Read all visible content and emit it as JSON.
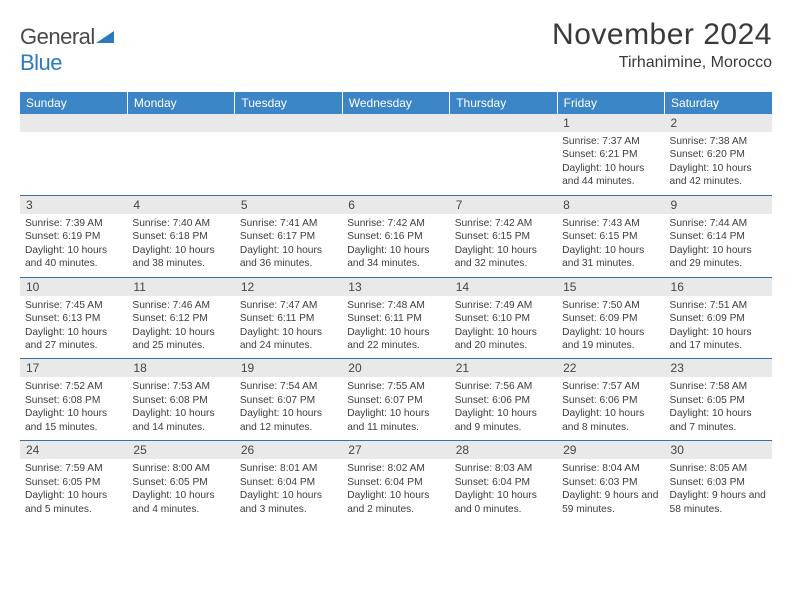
{
  "brand": {
    "word1": "General",
    "word2": "Blue",
    "word1_color": "#494949",
    "word2_color": "#2d79bd",
    "icon_color": "#2d79bd"
  },
  "header": {
    "title": "November 2024",
    "location": "Tirhanimine, Morocco",
    "title_fontsize": 30,
    "location_fontsize": 16,
    "title_color": "#3a3a3a"
  },
  "columns": [
    "Sunday",
    "Monday",
    "Tuesday",
    "Wednesday",
    "Thursday",
    "Friday",
    "Saturday"
  ],
  "style": {
    "header_bg": "#3c85c6",
    "header_text": "#ffffff",
    "daynum_bg": "#e9e9e9",
    "row_divider": "#3972a8",
    "body_text": "#3d3d3d",
    "cell_fontsize": 10.2,
    "daynum_fontsize": 12
  },
  "weeks": [
    [
      null,
      null,
      null,
      null,
      null,
      {
        "n": "1",
        "sunrise": "7:37 AM",
        "sunset": "6:21 PM",
        "daylight": "10 hours and 44 minutes."
      },
      {
        "n": "2",
        "sunrise": "7:38 AM",
        "sunset": "6:20 PM",
        "daylight": "10 hours and 42 minutes."
      }
    ],
    [
      {
        "n": "3",
        "sunrise": "7:39 AM",
        "sunset": "6:19 PM",
        "daylight": "10 hours and 40 minutes."
      },
      {
        "n": "4",
        "sunrise": "7:40 AM",
        "sunset": "6:18 PM",
        "daylight": "10 hours and 38 minutes."
      },
      {
        "n": "5",
        "sunrise": "7:41 AM",
        "sunset": "6:17 PM",
        "daylight": "10 hours and 36 minutes."
      },
      {
        "n": "6",
        "sunrise": "7:42 AM",
        "sunset": "6:16 PM",
        "daylight": "10 hours and 34 minutes."
      },
      {
        "n": "7",
        "sunrise": "7:42 AM",
        "sunset": "6:15 PM",
        "daylight": "10 hours and 32 minutes."
      },
      {
        "n": "8",
        "sunrise": "7:43 AM",
        "sunset": "6:15 PM",
        "daylight": "10 hours and 31 minutes."
      },
      {
        "n": "9",
        "sunrise": "7:44 AM",
        "sunset": "6:14 PM",
        "daylight": "10 hours and 29 minutes."
      }
    ],
    [
      {
        "n": "10",
        "sunrise": "7:45 AM",
        "sunset": "6:13 PM",
        "daylight": "10 hours and 27 minutes."
      },
      {
        "n": "11",
        "sunrise": "7:46 AM",
        "sunset": "6:12 PM",
        "daylight": "10 hours and 25 minutes."
      },
      {
        "n": "12",
        "sunrise": "7:47 AM",
        "sunset": "6:11 PM",
        "daylight": "10 hours and 24 minutes."
      },
      {
        "n": "13",
        "sunrise": "7:48 AM",
        "sunset": "6:11 PM",
        "daylight": "10 hours and 22 minutes."
      },
      {
        "n": "14",
        "sunrise": "7:49 AM",
        "sunset": "6:10 PM",
        "daylight": "10 hours and 20 minutes."
      },
      {
        "n": "15",
        "sunrise": "7:50 AM",
        "sunset": "6:09 PM",
        "daylight": "10 hours and 19 minutes."
      },
      {
        "n": "16",
        "sunrise": "7:51 AM",
        "sunset": "6:09 PM",
        "daylight": "10 hours and 17 minutes."
      }
    ],
    [
      {
        "n": "17",
        "sunrise": "7:52 AM",
        "sunset": "6:08 PM",
        "daylight": "10 hours and 15 minutes."
      },
      {
        "n": "18",
        "sunrise": "7:53 AM",
        "sunset": "6:08 PM",
        "daylight": "10 hours and 14 minutes."
      },
      {
        "n": "19",
        "sunrise": "7:54 AM",
        "sunset": "6:07 PM",
        "daylight": "10 hours and 12 minutes."
      },
      {
        "n": "20",
        "sunrise": "7:55 AM",
        "sunset": "6:07 PM",
        "daylight": "10 hours and 11 minutes."
      },
      {
        "n": "21",
        "sunrise": "7:56 AM",
        "sunset": "6:06 PM",
        "daylight": "10 hours and 9 minutes."
      },
      {
        "n": "22",
        "sunrise": "7:57 AM",
        "sunset": "6:06 PM",
        "daylight": "10 hours and 8 minutes."
      },
      {
        "n": "23",
        "sunrise": "7:58 AM",
        "sunset": "6:05 PM",
        "daylight": "10 hours and 7 minutes."
      }
    ],
    [
      {
        "n": "24",
        "sunrise": "7:59 AM",
        "sunset": "6:05 PM",
        "daylight": "10 hours and 5 minutes."
      },
      {
        "n": "25",
        "sunrise": "8:00 AM",
        "sunset": "6:05 PM",
        "daylight": "10 hours and 4 minutes."
      },
      {
        "n": "26",
        "sunrise": "8:01 AM",
        "sunset": "6:04 PM",
        "daylight": "10 hours and 3 minutes."
      },
      {
        "n": "27",
        "sunrise": "8:02 AM",
        "sunset": "6:04 PM",
        "daylight": "10 hours and 2 minutes."
      },
      {
        "n": "28",
        "sunrise": "8:03 AM",
        "sunset": "6:04 PM",
        "daylight": "10 hours and 0 minutes."
      },
      {
        "n": "29",
        "sunrise": "8:04 AM",
        "sunset": "6:03 PM",
        "daylight": "9 hours and 59 minutes."
      },
      {
        "n": "30",
        "sunrise": "8:05 AM",
        "sunset": "6:03 PM",
        "daylight": "9 hours and 58 minutes."
      }
    ]
  ],
  "labels": {
    "sunrise": "Sunrise:",
    "sunset": "Sunset:",
    "daylight": "Daylight:"
  }
}
